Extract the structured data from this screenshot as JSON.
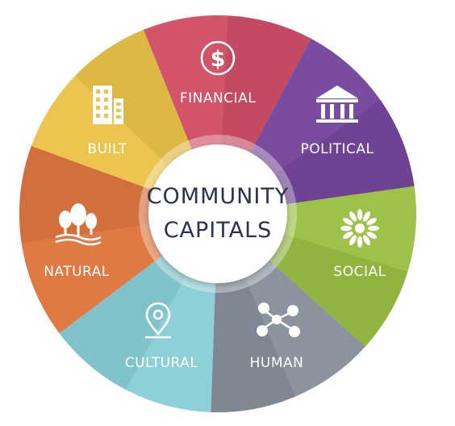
{
  "center": {
    "line1": "COMMUNITY",
    "line2": "CAPITALS"
  },
  "segments": [
    {
      "label": "FINANCIAL",
      "icon": "dollar-coin-icon",
      "color": "#d15468",
      "shade": "#b8425a"
    },
    {
      "label": "POLITICAL",
      "icon": "government-building-icon",
      "color": "#7a4c9f",
      "shade": "#653d88"
    },
    {
      "label": "SOCIAL",
      "icon": "sun-burst-icon",
      "color": "#9dc149",
      "shade": "#87a93a"
    },
    {
      "label": "HUMAN",
      "icon": "people-network-icon",
      "color": "#8b939e",
      "shade": "#767e89"
    },
    {
      "label": "CULTURAL",
      "icon": "location-pin-icon",
      "color": "#8ed0d8",
      "shade": "#74b8c1"
    },
    {
      "label": "NATURAL",
      "icon": "trees-icon",
      "color": "#e07a45",
      "shade": "#c86637"
    },
    {
      "label": "BUILT",
      "icon": "building-icon",
      "color": "#ecc550",
      "shade": "#d4ad3d"
    }
  ]
}
